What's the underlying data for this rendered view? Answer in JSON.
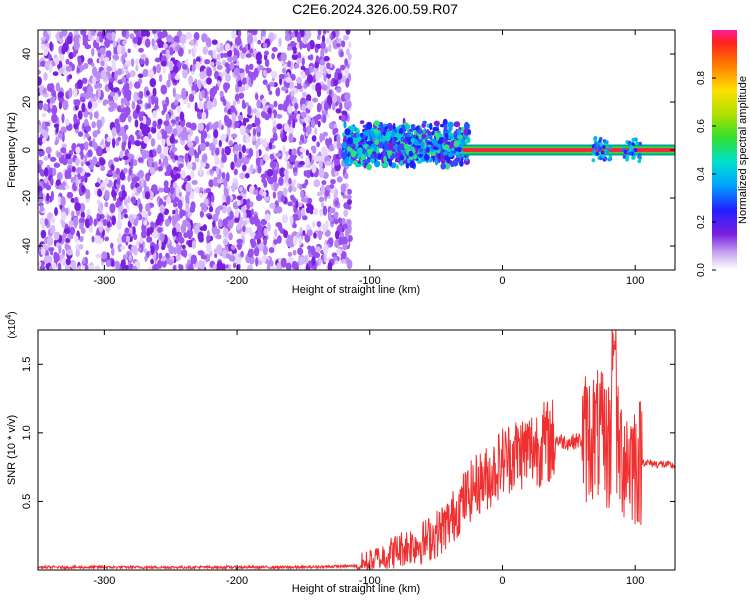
{
  "title": "C2E6.2024.326.00.59.R07",
  "colors": {
    "series": "#f03030",
    "axis": "#000000",
    "spectrum_low": "#7a1fe0"
  },
  "chart_data": [
    {
      "type": "heatmap",
      "title": "C2E6.2024.326.00.59.R07",
      "xlabel": "Height of straight line (km)",
      "ylabel": "Frequency (Hz)",
      "xlim": [
        -350,
        130
      ],
      "ylim": [
        -50,
        50
      ],
      "x_ticks": [
        -300,
        -200,
        -100,
        0,
        100
      ],
      "y_ticks": [
        -40,
        -20,
        0,
        20,
        40
      ],
      "colorbar": {
        "label": "Normalized spectral amplitude",
        "range": [
          0,
          1
        ],
        "ticks": [
          "0.0",
          "0.2",
          "0.4",
          "0.6",
          "0.8"
        ]
      },
      "regions": [
        {
          "x_range": [
            -350,
            -115
          ],
          "freq_range": [
            -50,
            50
          ],
          "amplitude": 0.1,
          "pattern": "scattered noise"
        },
        {
          "x_range": [
            -120,
            -25
          ],
          "freq_range": [
            -15,
            13
          ],
          "amplitude": 0.3,
          "pattern": "broadband echo"
        },
        {
          "x_range": [
            -30,
            130
          ],
          "freq_range": [
            -1,
            1
          ],
          "amplitude": 0.95,
          "pattern": "narrow band at 0 Hz"
        }
      ]
    },
    {
      "type": "line",
      "xlabel": "Height of straight line (km)",
      "ylabel": "SNR (10 * v/v)",
      "y_multiplier": "(x10",
      "y_multiplier_exp": "4",
      "xlim": [
        -350,
        130
      ],
      "ylim": [
        0,
        1.75
      ],
      "x_ticks": [
        -300,
        -200,
        -100,
        0,
        100
      ],
      "y_ticks": [
        "0.5",
        "1.0",
        "1.5"
      ],
      "series": [
        {
          "x": [
            -350,
            -300,
            -250,
            -200,
            -150,
            -110,
            -100,
            -90,
            -80,
            -70,
            -60,
            -50,
            -40,
            -30,
            -20,
            -10,
            0,
            10,
            20,
            30,
            40,
            50,
            60,
            70,
            80,
            90,
            100,
            110,
            120,
            130
          ],
          "values": [
            0.02,
            0.02,
            0.02,
            0.02,
            0.02,
            0.03,
            0.06,
            0.1,
            0.14,
            0.18,
            0.2,
            0.26,
            0.35,
            0.5,
            0.62,
            0.68,
            0.8,
            0.85,
            0.88,
            0.92,
            0.95,
            0.93,
            0.95,
            1.0,
            0.9,
            0.85,
            0.8,
            0.78,
            0.77,
            0.76
          ],
          "max": 1.75
        }
      ]
    }
  ]
}
